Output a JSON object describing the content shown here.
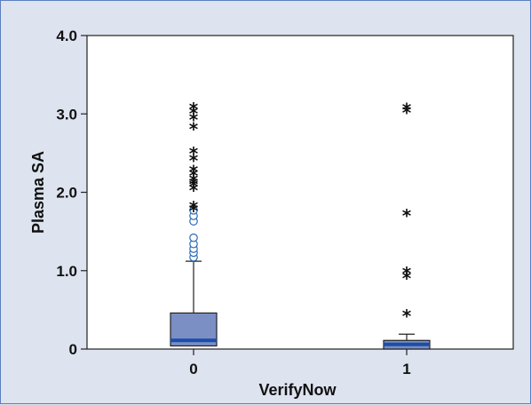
{
  "chart_data": {
    "type": "box",
    "xlabel": "VerifyNow",
    "ylabel": "Plasma SA",
    "ylim": [
      0,
      4.0
    ],
    "y_ticks": [
      "0",
      "1.0",
      "2.0",
      "3.0",
      "4.0"
    ],
    "y_tick_values": [
      0,
      1.0,
      2.0,
      3.0,
      4.0
    ],
    "categories": [
      "0",
      "1"
    ],
    "groups": [
      {
        "category": "0",
        "q1": 0.04,
        "median": 0.11,
        "q3": 0.46,
        "whisker_low": 0.0,
        "whisker_high": 1.12,
        "outliers_circle": [
          1.17,
          1.23,
          1.28,
          1.34,
          1.42,
          1.63,
          1.7,
          1.77
        ],
        "outliers_star": [
          1.83,
          1.87,
          2.09,
          2.14,
          2.17,
          2.21,
          2.28,
          2.33,
          2.47,
          2.56,
          2.87,
          2.99,
          3.07,
          3.13
        ]
      },
      {
        "category": "1",
        "q1": 0.0,
        "median": 0.06,
        "q3": 0.11,
        "whisker_low": 0.0,
        "whisker_high": 0.19,
        "outliers_circle": [],
        "outliers_star": [
          0.49,
          0.97,
          1.03,
          1.77,
          3.08,
          3.12
        ]
      }
    ],
    "colors": {
      "box_fill": "#7b8fc5",
      "median": "#1a4fa8",
      "circle": "#2a6ab8",
      "star": "#111111",
      "plot_bg": "#ffffff",
      "page_bg": "#dde3ef"
    }
  }
}
